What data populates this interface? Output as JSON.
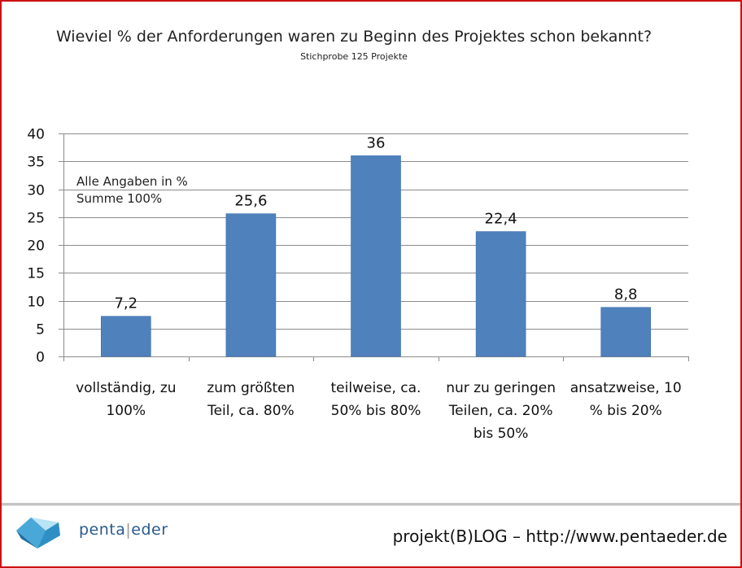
{
  "chart_data": {
    "type": "bar",
    "title": "Wieviel % der Anforderungen waren zu Beginn des Projektes schon bekannt?",
    "subtitle": "Stichprobe 125 Projekte",
    "categories": [
      [
        "vollständig, zu",
        "100%"
      ],
      [
        "zum größten",
        "Teil, ca. 80%"
      ],
      [
        "teilweise, ca.",
        "50% bis 80%"
      ],
      [
        "nur zu geringen",
        "Teilen, ca. 20%",
        "bis 50%"
      ],
      [
        "ansatzweise, 10",
        "% bis 20%"
      ]
    ],
    "values": [
      7.2,
      25.6,
      36,
      22.4,
      8.8
    ],
    "value_labels": [
      "7,2",
      "25,6",
      "36",
      "22,4",
      "8,8"
    ],
    "ylim": [
      0,
      40
    ],
    "yticks": [
      0,
      5,
      10,
      15,
      20,
      25,
      30,
      35,
      40
    ],
    "grid": true,
    "bar_color": "#4f81bd",
    "annotation": [
      "Alle Angaben in %",
      "Summe 100%"
    ]
  },
  "footer": {
    "brand_left": "penta",
    "brand_right": "eder",
    "text": "projekt(B)LOG – http://www.pentaeder.de"
  },
  "colors": {
    "border": "#cc1111",
    "grid": "#8c8c8c",
    "logo": "#4aa8d8"
  }
}
